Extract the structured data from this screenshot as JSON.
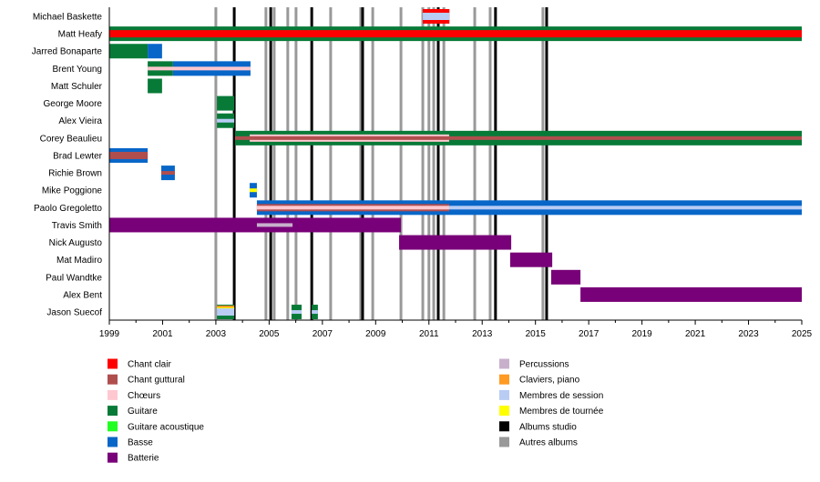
{
  "chart_data": {
    "type": "timeline",
    "xlim": [
      1999,
      2025
    ],
    "x_ticks": [
      1999,
      2001,
      2003,
      2005,
      2007,
      2009,
      2011,
      2013,
      2015,
      2017,
      2019,
      2021,
      2023,
      2025
    ],
    "legend_position": "bottom",
    "roles": {
      "chant_clair": {
        "label": "Chant clair",
        "color": "#FF0000"
      },
      "chant_guttural": {
        "label": "Chant guttural",
        "color": "#B04E4E"
      },
      "choeurs": {
        "label": "Chœurs",
        "color": "#FFC8D0"
      },
      "guitare": {
        "label": "Guitare",
        "color": "#087A38"
      },
      "guitare_acoustique": {
        "label": "Guitare acoustique",
        "color": "#22FF22"
      },
      "basse": {
        "label": "Basse",
        "color": "#0866C8"
      },
      "batterie": {
        "label": "Batterie",
        "color": "#780078"
      },
      "percussions": {
        "label": "Percussions",
        "color": "#C8B0CC"
      },
      "claviers": {
        "label": "Claviers, piano",
        "color": "#FF9A22"
      },
      "session": {
        "label": "Membres de session",
        "color": "#B8CCF4"
      },
      "tournee": {
        "label": "Membres de tournée",
        "color": "#FFFF00"
      },
      "albums_studio": {
        "label": "Albums studio",
        "color": "#000000"
      },
      "autres_albums": {
        "label": "Autres albums",
        "color": "#999999"
      }
    },
    "legend_left": [
      "chant_clair",
      "chant_guttural",
      "choeurs",
      "guitare",
      "guitare_acoustique",
      "basse",
      "batterie"
    ],
    "legend_right": [
      "percussions",
      "claviers",
      "session",
      "tournee",
      "albums_studio",
      "autres_albums"
    ],
    "albums_studio": [
      2003.69,
      2005.06,
      2006.6,
      2008.51,
      2011.35,
      2013.5,
      2015.42
    ],
    "autres_albums": [
      2003.0,
      2004.88,
      2005.19,
      2005.7,
      2006.01,
      2007.31,
      2008.44,
      2008.89,
      2009.95,
      2010.77,
      2011.0,
      2011.18,
      2011.56,
      2012.72,
      2013.3,
      2015.28
    ],
    "members": [
      {
        "name": "Michael Baskette",
        "bars": [
          {
            "role": "chant_clair",
            "start": 2010.77,
            "end": 2011.77,
            "layer": "main"
          },
          {
            "role": "session",
            "start": 2010.77,
            "end": 2011.77,
            "layer": "inner"
          }
        ]
      },
      {
        "name": "Matt Heafy",
        "bars": [
          {
            "role": "guitare",
            "start": 1999,
            "end": 2025,
            "layer": "main"
          },
          {
            "role": "chant_clair",
            "start": 1999,
            "end": 2025,
            "layer": "inner"
          }
        ]
      },
      {
        "name": "Jarred Bonaparte",
        "bars": [
          {
            "role": "guitare",
            "start": 1999,
            "end": 2000.44,
            "layer": "main"
          },
          {
            "role": "basse",
            "start": 2000.44,
            "end": 2000.98,
            "layer": "main"
          }
        ]
      },
      {
        "name": "Brent Young",
        "bars": [
          {
            "role": "guitare",
            "start": 2000.44,
            "end": 2001.39,
            "layer": "main"
          },
          {
            "role": "basse",
            "start": 2001.39,
            "end": 2004.3,
            "layer": "main"
          },
          {
            "role": "choeurs",
            "start": 2000.44,
            "end": 2004.3,
            "layer": "center"
          }
        ]
      },
      {
        "name": "Matt Schuler",
        "bars": [
          {
            "role": "guitare",
            "start": 2000.44,
            "end": 2000.98,
            "layer": "main"
          }
        ]
      },
      {
        "name": "George Moore",
        "bars": [
          {
            "role": "guitare",
            "start": 2003.04,
            "end": 2003.69,
            "layer": "main"
          }
        ]
      },
      {
        "name": "Alex Vieira",
        "bars": [
          {
            "role": "guitare",
            "start": 2003.04,
            "end": 2003.69,
            "layer": "main"
          },
          {
            "role": "session",
            "start": 2003.04,
            "end": 2003.69,
            "layer": "center"
          }
        ]
      },
      {
        "name": "Corey Beaulieu",
        "bars": [
          {
            "role": "guitare",
            "start": 2003.72,
            "end": 2025,
            "layer": "main"
          },
          {
            "role": "choeurs",
            "start": 2004.27,
            "end": 2011.76,
            "layer": "inner"
          },
          {
            "role": "chant_guttural",
            "start": 2003.72,
            "end": 2025,
            "layer": "center"
          }
        ]
      },
      {
        "name": "Brad Lewter",
        "bars": [
          {
            "role": "basse",
            "start": 1999,
            "end": 2000.44,
            "layer": "main"
          },
          {
            "role": "chant_guttural",
            "start": 1999,
            "end": 2000.44,
            "layer": "inner"
          }
        ]
      },
      {
        "name": "Richie Brown",
        "bars": [
          {
            "role": "basse",
            "start": 2000.95,
            "end": 2001.46,
            "layer": "main"
          },
          {
            "role": "chant_guttural",
            "start": 2000.95,
            "end": 2001.46,
            "layer": "center"
          }
        ]
      },
      {
        "name": "Mike Poggione",
        "bars": [
          {
            "role": "basse",
            "start": 2004.27,
            "end": 2004.54,
            "layer": "main"
          },
          {
            "role": "tournee",
            "start": 2004.27,
            "end": 2004.54,
            "layer": "center"
          }
        ]
      },
      {
        "name": "Paolo Gregoletto",
        "bars": [
          {
            "role": "basse",
            "start": 2004.54,
            "end": 2025,
            "layer": "main"
          },
          {
            "role": "session",
            "start": 2004.54,
            "end": 2025,
            "layer": "center"
          },
          {
            "role": "chant_guttural",
            "start": 2004.54,
            "end": 2011.76,
            "layer": "inner"
          },
          {
            "role": "choeurs",
            "start": 2004.54,
            "end": 2011.76,
            "layer": "center"
          }
        ]
      },
      {
        "name": "Travis Smith",
        "bars": [
          {
            "role": "batterie",
            "start": 1999,
            "end": 2009.95,
            "layer": "main"
          },
          {
            "role": "percussions",
            "start": 2004.54,
            "end": 2005.88,
            "layer": "center"
          }
        ]
      },
      {
        "name": "Nick Augusto",
        "bars": [
          {
            "role": "batterie",
            "start": 2009.88,
            "end": 2014.09,
            "layer": "main"
          }
        ]
      },
      {
        "name": "Mat Madiro",
        "bars": [
          {
            "role": "batterie",
            "start": 2014.05,
            "end": 2015.63,
            "layer": "main"
          }
        ]
      },
      {
        "name": "Paul Wandtke",
        "bars": [
          {
            "role": "batterie",
            "start": 2015.59,
            "end": 2016.69,
            "layer": "main"
          }
        ]
      },
      {
        "name": "Alex Bent",
        "bars": [
          {
            "role": "batterie",
            "start": 2016.69,
            "end": 2025,
            "layer": "main"
          }
        ]
      },
      {
        "name": "Jason Suecof",
        "bars": [
          {
            "role": "guitare",
            "start": 2003.04,
            "end": 2003.69,
            "layer": "main"
          },
          {
            "role": "claviers",
            "start": 2003.04,
            "end": 2003.69,
            "layer": "top"
          },
          {
            "role": "tournee",
            "start": 2003.04,
            "end": 2003.69,
            "layer": "top2"
          },
          {
            "role": "session",
            "start": 2003.04,
            "end": 2003.69,
            "layer": "inner"
          },
          {
            "role": "guitare",
            "start": 2005.84,
            "end": 2006.22,
            "layer": "main"
          },
          {
            "role": "session",
            "start": 2005.84,
            "end": 2006.22,
            "layer": "center"
          },
          {
            "role": "guitare",
            "start": 2006.6,
            "end": 2006.83,
            "layer": "main"
          },
          {
            "role": "session",
            "start": 2006.6,
            "end": 2006.83,
            "layer": "center"
          }
        ]
      }
    ]
  }
}
